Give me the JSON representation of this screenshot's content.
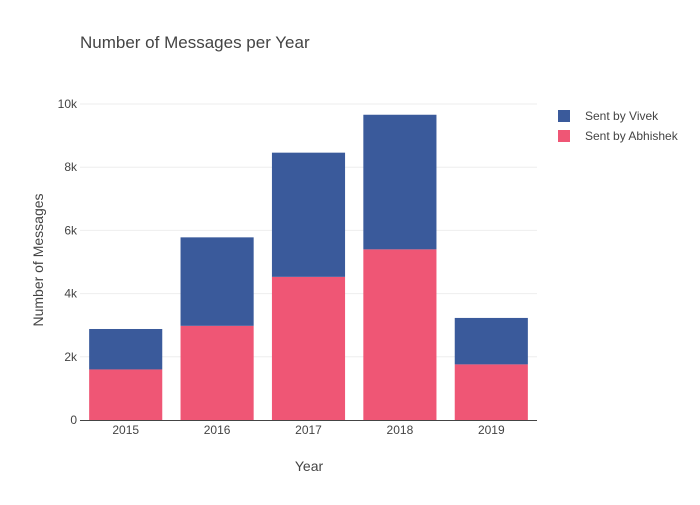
{
  "chart_data": {
    "type": "bar",
    "stacked": true,
    "title": "Number of Messages per Year",
    "xlabel": "Year",
    "ylabel": "Number of Messages",
    "categories": [
      "2015",
      "2016",
      "2017",
      "2018",
      "2019"
    ],
    "series": [
      {
        "name": "Sent by Abhishek",
        "color": "#ef5675",
        "values": [
          1600,
          2980,
          4530,
          5400,
          1760
        ]
      },
      {
        "name": "Sent by Vivek",
        "color": "#3a5a9b",
        "values": [
          1280,
          2800,
          3930,
          4260,
          1470
        ]
      }
    ],
    "ylim": [
      0,
      10000
    ],
    "yticks": [
      0,
      2000,
      4000,
      6000,
      8000,
      10000
    ],
    "ytick_labels": [
      "0",
      "2k",
      "4k",
      "6k",
      "8k",
      "10k"
    ],
    "grid": true,
    "legend": "top-right"
  }
}
